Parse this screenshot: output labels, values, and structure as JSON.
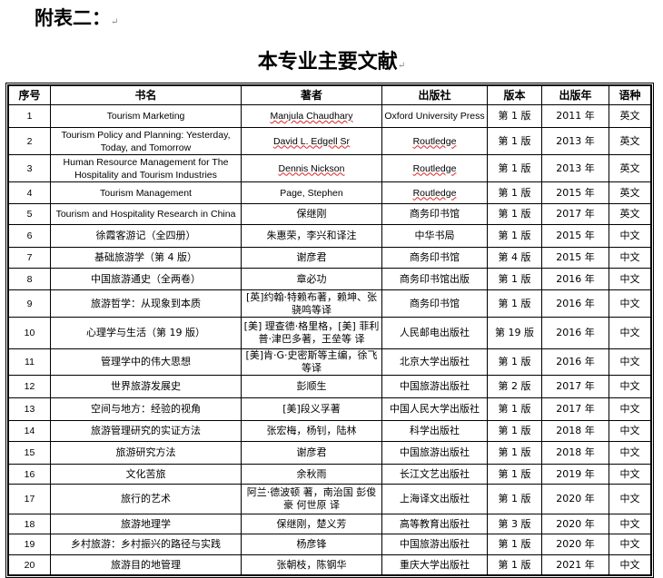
{
  "annex_label": "附表二：",
  "title": "本专业主要文献",
  "columns": [
    "序号",
    "书名",
    "著者",
    "出版社",
    "版本",
    "出版年",
    "语种"
  ],
  "rows": [
    [
      "1",
      "Tourism Marketing",
      "Manjula Chaudhary",
      "Oxford University Press",
      "第 1 版",
      "2011 年",
      "英文"
    ],
    [
      "2",
      "Tourism Policy and Planning: Yesterday, Today, and Tomorrow",
      "David L. Edgell Sr",
      "Routledge",
      "第 1 版",
      "2013 年",
      "英文"
    ],
    [
      "3",
      "Human Resource Management for The Hospitality and Tourism Industries",
      "Dennis Nickson",
      "Routledge",
      "第 1 版",
      "2013 年",
      "英文"
    ],
    [
      "4",
      "Tourism Management",
      "Page, Stephen",
      "Routledge",
      "第 1 版",
      "2015 年",
      "英文"
    ],
    [
      "5",
      "Tourism and Hospitality Research in China",
      "保继刚",
      "商务印书馆",
      "第 1 版",
      "2017 年",
      "英文"
    ],
    [
      "6",
      "徐霞客游记（全四册）",
      "朱惠荣，李兴和译注",
      "中华书局",
      "第 1 版",
      "2015 年",
      "中文"
    ],
    [
      "7",
      "基础旅游学（第 4 版）",
      "谢彦君",
      "商务印书馆",
      "第 4 版",
      "2015 年",
      "中文"
    ],
    [
      "8",
      "中国旅游通史（全两卷）",
      "章必功",
      "商务印书馆出版",
      "第 1 版",
      "2016 年",
      "中文"
    ],
    [
      "9",
      "旅游哲学：从现象到本质",
      "[英]约翰·特赖布著，赖坤、张骁鸣等译",
      "商务印书馆",
      "第 1 版",
      "2016 年",
      "中文"
    ],
    [
      "10",
      "心理学与生活（第 19 版）",
      "[美] 理查德·格里格，[美] 菲利普·津巴多著，王垒等 译",
      "人民邮电出版社",
      "第 19 版",
      "2016 年",
      "中文"
    ],
    [
      "11",
      "管理学中的伟大思想",
      "[美]肯·G·史密斯等主编，徐飞等译",
      "北京大学出版社",
      "第 1 版",
      "2016 年",
      "中文"
    ],
    [
      "12",
      "世界旅游发展史",
      "彭顺生",
      "中国旅游出版社",
      "第 2 版",
      "2017 年",
      "中文"
    ],
    [
      "13",
      "空间与地方：经验的视角",
      "[美]段义孚著",
      "中国人民大学出版社",
      "第 1 版",
      "2017 年",
      "中文"
    ],
    [
      "14",
      "旅游管理研究的实证方法",
      "张宏梅，杨钊，陆林",
      "科学出版社",
      "第 1 版",
      "2018 年",
      "中文"
    ],
    [
      "15",
      "旅游研究方法",
      "谢彦君",
      "中国旅游出版社",
      "第 1 版",
      "2018 年",
      "中文"
    ],
    [
      "16",
      "文化苦旅",
      "余秋雨",
      "长江文艺出版社",
      "第 1 版",
      "2019 年",
      "中文"
    ],
    [
      "17",
      "旅行的艺术",
      "阿兰·德波顿 著，南治国 彭俊豪 何世原 译",
      "上海译文出版社",
      "第 1 版",
      "2020 年",
      "中文"
    ],
    [
      "18",
      "旅游地理学",
      "保继刚，楚义芳",
      "高等教育出版社",
      "第 3 版",
      "2020 年",
      "中文"
    ],
    [
      "19",
      "乡村旅游：乡村振兴的路径与实践",
      "杨彦锋",
      "中国旅游出版社",
      "第 1 版",
      "2020 年",
      "中文"
    ],
    [
      "20",
      "旅游目的地管理",
      "张朝枝，陈钢华",
      "重庆大学出版社",
      "第 1 版",
      "2021 年",
      "中文"
    ]
  ]
}
